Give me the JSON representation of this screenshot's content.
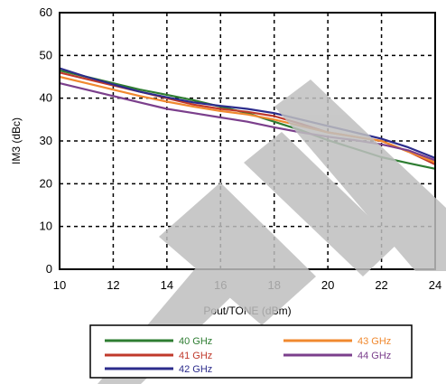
{
  "chart_data": {
    "type": "line",
    "xlabel": "Pout/TONE (dBm)",
    "ylabel": "IM3 (dBc)",
    "xlim": [
      10,
      24
    ],
    "ylim": [
      0,
      60
    ],
    "xticks": [
      "10",
      "12",
      "14",
      "16",
      "18",
      "20",
      "22",
      "24"
    ],
    "yticks": [
      "0",
      "10",
      "20",
      "30",
      "40",
      "50",
      "60"
    ],
    "grid": true,
    "legend_position": "bottom",
    "series": [
      {
        "name": "40 GHz",
        "color": "#2e7d32",
        "x": [
          10,
          11,
          12,
          13,
          14,
          15,
          16,
          17,
          18,
          19,
          20,
          21,
          22,
          23,
          24
        ],
        "y": [
          46.5,
          45,
          43.5,
          42,
          40.8,
          39.5,
          38,
          36.5,
          34.5,
          32.5,
          30.2,
          28.2,
          26.2,
          24.8,
          23.5
        ]
      },
      {
        "name": "41 GHz",
        "color": "#c0392b",
        "x": [
          10,
          11,
          12,
          13,
          14,
          15,
          16,
          17,
          18,
          19,
          20,
          21,
          22,
          23,
          24
        ],
        "y": [
          46,
          44.5,
          43,
          41.5,
          40,
          38.5,
          37.5,
          36.8,
          35.8,
          34,
          32,
          31,
          30,
          27.5,
          24.5
        ]
      },
      {
        "name": "42 GHz",
        "color": "#2c2c8c",
        "x": [
          10,
          11,
          12,
          13,
          14,
          15,
          16,
          17,
          18,
          19,
          20,
          21,
          22,
          23,
          24
        ],
        "y": [
          47,
          45,
          43.2,
          41.5,
          40.2,
          39,
          38.2,
          37.5,
          36.5,
          35,
          33.5,
          32,
          30.5,
          28.5,
          26
        ]
      },
      {
        "name": "43 GHz",
        "color": "#f0892f",
        "x": [
          10,
          11,
          12,
          13,
          14,
          15,
          16,
          17,
          18,
          19,
          20,
          21,
          22,
          23,
          24
        ],
        "y": [
          45,
          43.5,
          42,
          40.5,
          39.2,
          38,
          37,
          36.2,
          35,
          33.5,
          32,
          31,
          30,
          27.5,
          25
        ]
      },
      {
        "name": "44 GHz",
        "color": "#7b3f8c",
        "x": [
          10,
          11,
          12,
          13,
          14,
          15,
          16,
          17,
          18,
          19,
          20,
          21,
          22,
          23,
          24
        ],
        "y": [
          43.5,
          42,
          40.5,
          39,
          37.5,
          36.5,
          35.5,
          34.5,
          33.2,
          32,
          31,
          30.2,
          29.2,
          27.8,
          25.5
        ]
      }
    ]
  }
}
